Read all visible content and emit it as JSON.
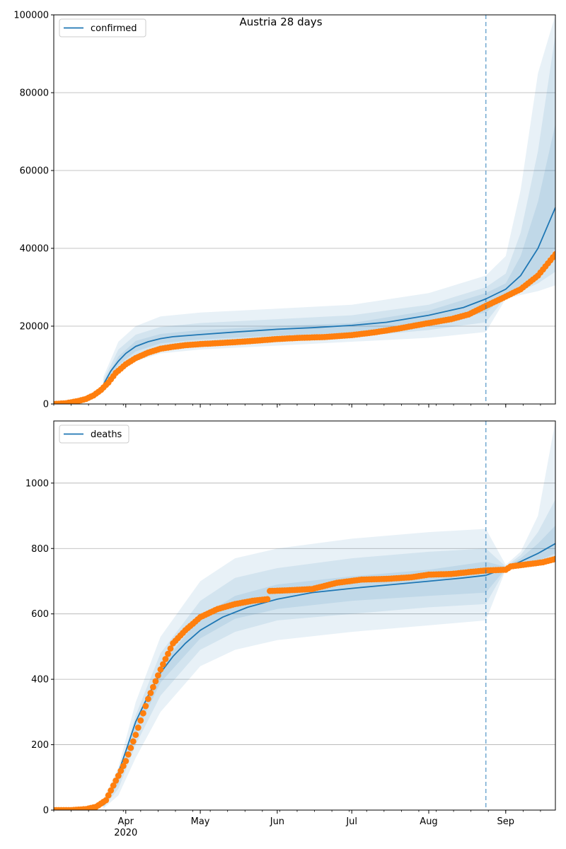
{
  "title": "Austria 28 days",
  "colors": {
    "model": "#1f77b4",
    "observed": "#ff7f0e",
    "grid": "#b0b0b0",
    "band": "#1f77b4"
  },
  "chart_data": [
    {
      "type": "line",
      "name": "confirmed-panel",
      "legend": "confirmed",
      "legend_position": "top-left",
      "grid": "horizontal",
      "x_range": [
        "2020-03-03",
        "2020-09-21"
      ],
      "ylim": [
        0,
        100000
      ],
      "yticks": [
        0,
        20000,
        40000,
        60000,
        80000,
        100000
      ],
      "forecast_start": "2020-08-24",
      "model_median": {
        "x": [
          "2020-03-23",
          "2020-03-26",
          "2020-03-29",
          "2020-04-01",
          "2020-04-05",
          "2020-04-10",
          "2020-04-15",
          "2020-04-20",
          "2020-04-30",
          "2020-05-15",
          "2020-06-01",
          "2020-06-15",
          "2020-07-01",
          "2020-07-15",
          "2020-08-01",
          "2020-08-15",
          "2020-08-24",
          "2020-09-01",
          "2020-09-07",
          "2020-09-14",
          "2020-09-21"
        ],
        "y": [
          5000,
          8500,
          11000,
          13000,
          14800,
          16000,
          16800,
          17300,
          17800,
          18500,
          19200,
          19600,
          20200,
          21000,
          22800,
          24800,
          27000,
          29500,
          33000,
          40000,
          50500
        ]
      },
      "bands": [
        {
          "x": [
            "2020-03-23",
            "2020-03-29",
            "2020-04-05",
            "2020-04-15",
            "2020-05-01",
            "2020-06-01",
            "2020-07-01",
            "2020-08-01",
            "2020-08-24",
            "2020-09-01",
            "2020-09-07",
            "2020-09-14",
            "2020-09-21"
          ],
          "lower": [
            3000,
            8000,
            11000,
            13000,
            14000,
            15000,
            16000,
            17000,
            18500,
            27000,
            28000,
            29000,
            30500
          ],
          "upper": [
            7000,
            16000,
            20000,
            22500,
            23500,
            24500,
            25500,
            28500,
            33000,
            38000,
            55000,
            85000,
            100000
          ]
        },
        {
          "x": [
            "2020-03-23",
            "2020-03-29",
            "2020-04-05",
            "2020-04-15",
            "2020-05-01",
            "2020-06-01",
            "2020-07-01",
            "2020-08-01",
            "2020-08-24",
            "2020-09-01",
            "2020-09-07",
            "2020-09-14",
            "2020-09-21"
          ],
          "lower": [
            3800,
            9000,
            12300,
            14500,
            15500,
            16500,
            17200,
            19000,
            21000,
            27500,
            29000,
            31000,
            34000
          ],
          "upper": [
            6200,
            14000,
            17800,
            19800,
            20800,
            21800,
            22800,
            25500,
            30000,
            33500,
            44000,
            65000,
            95000
          ]
        },
        {
          "x": [
            "2020-03-23",
            "2020-03-29",
            "2020-04-05",
            "2020-04-15",
            "2020-05-01",
            "2020-06-01",
            "2020-07-01",
            "2020-08-01",
            "2020-08-24",
            "2020-09-01",
            "2020-09-07",
            "2020-09-14",
            "2020-09-21"
          ],
          "lower": [
            4400,
            10000,
            13500,
            15600,
            16600,
            17600,
            18300,
            20500,
            23500,
            28000,
            30500,
            34000,
            40000
          ],
          "upper": [
            5600,
            12200,
            16200,
            18000,
            19000,
            20000,
            20800,
            24000,
            28500,
            31000,
            38000,
            52000,
            72000
          ]
        }
      ],
      "observed": {
        "x": [
          "2020-03-03",
          "2020-03-08",
          "2020-03-13",
          "2020-03-16",
          "2020-03-19",
          "2020-03-22",
          "2020-03-25",
          "2020-03-28",
          "2020-04-01",
          "2020-04-05",
          "2020-04-10",
          "2020-04-15",
          "2020-04-20",
          "2020-04-25",
          "2020-05-01",
          "2020-05-10",
          "2020-05-20",
          "2020-06-01",
          "2020-06-10",
          "2020-06-20",
          "2020-07-01",
          "2020-07-10",
          "2020-07-20",
          "2020-08-01",
          "2020-08-10",
          "2020-08-17",
          "2020-08-24",
          "2020-08-31",
          "2020-09-07",
          "2020-09-14",
          "2020-09-21"
        ],
        "y": [
          0,
          200,
          800,
          1300,
          2200,
          3600,
          5500,
          8000,
          10200,
          11800,
          13200,
          14200,
          14700,
          15100,
          15400,
          15700,
          16100,
          16700,
          17000,
          17200,
          17700,
          18400,
          19400,
          20800,
          21800,
          23000,
          25200,
          27300,
          29500,
          33000,
          38500
        ]
      }
    },
    {
      "type": "line",
      "name": "deaths-panel",
      "legend": "deaths",
      "legend_position": "top-left",
      "grid": "horizontal",
      "x_range": [
        "2020-03-03",
        "2020-09-21"
      ],
      "ylim": [
        0,
        1190
      ],
      "yticks": [
        0,
        200,
        400,
        600,
        800,
        1000
      ],
      "forecast_start": "2020-08-24",
      "xticks": [
        {
          "date": "2020-04-01",
          "label": "Apr",
          "sublabel": "2020"
        },
        {
          "date": "2020-05-01",
          "label": "May"
        },
        {
          "date": "2020-06-01",
          "label": "Jun"
        },
        {
          "date": "2020-07-01",
          "label": "Jul"
        },
        {
          "date": "2020-08-01",
          "label": "Aug"
        },
        {
          "date": "2020-09-01",
          "label": "Sep"
        }
      ],
      "model_median": {
        "x": [
          "2020-03-23",
          "2020-03-27",
          "2020-04-01",
          "2020-04-05",
          "2020-04-10",
          "2020-04-15",
          "2020-04-20",
          "2020-04-25",
          "2020-05-01",
          "2020-05-10",
          "2020-05-20",
          "2020-06-01",
          "2020-06-15",
          "2020-07-01",
          "2020-07-15",
          "2020-08-01",
          "2020-08-15",
          "2020-08-24",
          "2020-09-01",
          "2020-09-07",
          "2020-09-14",
          "2020-09-21"
        ],
        "y": [
          15,
          70,
          180,
          270,
          350,
          420,
          470,
          510,
          550,
          590,
          620,
          645,
          665,
          678,
          688,
          700,
          710,
          718,
          740,
          760,
          785,
          815
        ]
      },
      "bands": [
        {
          "x": [
            "2020-03-23",
            "2020-03-29",
            "2020-04-05",
            "2020-04-15",
            "2020-05-01",
            "2020-05-15",
            "2020-06-01",
            "2020-07-01",
            "2020-08-01",
            "2020-08-24",
            "2020-09-01",
            "2020-09-07",
            "2020-09-14",
            "2020-09-21"
          ],
          "lower": [
            5,
            45,
            160,
            300,
            440,
            490,
            520,
            545,
            565,
            580,
            735,
            740,
            750,
            760
          ],
          "upper": [
            35,
            130,
            330,
            530,
            700,
            770,
            800,
            830,
            850,
            860,
            750,
            790,
            900,
            1190
          ]
        },
        {
          "x": [
            "2020-03-23",
            "2020-03-29",
            "2020-04-05",
            "2020-04-15",
            "2020-05-01",
            "2020-05-15",
            "2020-06-01",
            "2020-07-01",
            "2020-08-01",
            "2020-08-24",
            "2020-09-01",
            "2020-09-07",
            "2020-09-14",
            "2020-09-21"
          ],
          "lower": [
            8,
            65,
            200,
            350,
            490,
            545,
            580,
            600,
            620,
            630,
            737,
            745,
            755,
            770
          ],
          "upper": [
            28,
            110,
            290,
            480,
            640,
            710,
            740,
            770,
            790,
            800,
            745,
            780,
            850,
            950
          ]
        },
        {
          "x": [
            "2020-03-23",
            "2020-03-29",
            "2020-04-05",
            "2020-04-15",
            "2020-05-01",
            "2020-05-15",
            "2020-06-01",
            "2020-07-01",
            "2020-08-01",
            "2020-08-24",
            "2020-09-01",
            "2020-09-07",
            "2020-09-14",
            "2020-09-21"
          ],
          "lower": [
            11,
            80,
            235,
            390,
            525,
            585,
            615,
            640,
            655,
            665,
            738,
            748,
            762,
            785
          ],
          "upper": [
            22,
            95,
            260,
            440,
            590,
            655,
            690,
            715,
            735,
            760,
            744,
            770,
            815,
            870
          ]
        }
      ],
      "observed": {
        "x": [
          "2020-03-03",
          "2020-03-10",
          "2020-03-16",
          "2020-03-20",
          "2020-03-24",
          "2020-03-28",
          "2020-04-01",
          "2020-04-05",
          "2020-04-10",
          "2020-04-15",
          "2020-04-20",
          "2020-04-25",
          "2020-05-01",
          "2020-05-08",
          "2020-05-15",
          "2020-05-22",
          "2020-05-28",
          "2020-05-29",
          "2020-06-05",
          "2020-06-15",
          "2020-06-25",
          "2020-07-05",
          "2020-07-15",
          "2020-07-25",
          "2020-08-01",
          "2020-08-10",
          "2020-08-20",
          "2020-08-24",
          "2020-09-01",
          "2020-09-03",
          "2020-09-10",
          "2020-09-16",
          "2020-09-21"
        ],
        "y": [
          0,
          0,
          3,
          10,
          30,
          90,
          150,
          230,
          340,
          430,
          510,
          550,
          590,
          615,
          630,
          640,
          645,
          670,
          672,
          676,
          695,
          705,
          707,
          712,
          720,
          722,
          730,
          733,
          735,
          745,
          752,
          758,
          768
        ]
      }
    }
  ]
}
